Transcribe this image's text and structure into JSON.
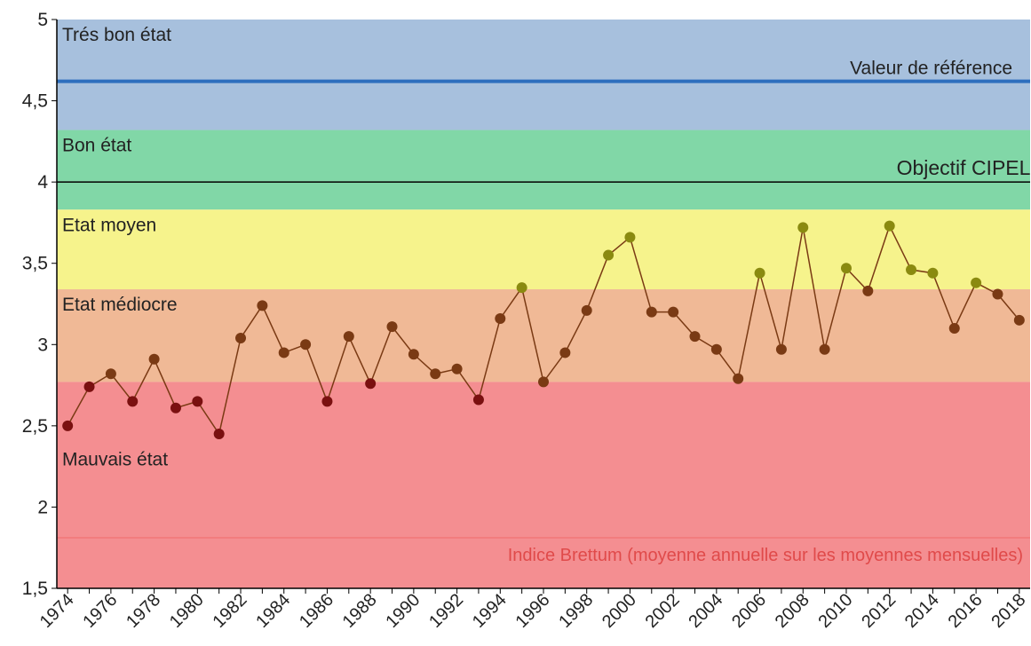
{
  "chart_data": {
    "type": "line",
    "x": [
      1974,
      1975,
      1976,
      1977,
      1978,
      1979,
      1980,
      1981,
      1982,
      1983,
      1984,
      1985,
      1986,
      1987,
      1988,
      1989,
      1990,
      1991,
      1992,
      1993,
      1994,
      1995,
      1996,
      1997,
      1998,
      1999,
      2000,
      2001,
      2002,
      2003,
      2004,
      2005,
      2006,
      2007,
      2008,
      2009,
      2010,
      2011,
      2012,
      2013,
      2014,
      2015,
      2016,
      2017,
      2018
    ],
    "series": [
      {
        "name": "Indice Brettum (moyenne annuelle sur les moyennes mensuelles)",
        "color": "#7a3a14",
        "legend_color": "#f06b6b",
        "values": [
          2.5,
          2.74,
          2.82,
          2.65,
          2.91,
          2.61,
          2.65,
          2.45,
          3.04,
          3.24,
          2.95,
          3.0,
          2.65,
          3.05,
          2.76,
          3.11,
          2.94,
          2.82,
          2.85,
          2.66,
          3.16,
          3.35,
          2.77,
          2.95,
          3.21,
          3.55,
          3.66,
          3.2,
          3.2,
          3.05,
          2.97,
          2.79,
          3.44,
          2.97,
          3.72,
          2.97,
          3.47,
          3.33,
          3.73,
          3.46,
          3.44,
          3.1,
          3.38,
          3.31,
          3.15
        ]
      }
    ],
    "bands": [
      {
        "label": "Trés bon état",
        "from": 4.32,
        "to": 5,
        "color": "#a7c0dd",
        "point_color": "#8a8a10"
      },
      {
        "label": "Bon état",
        "from": 3.83,
        "to": 4.32,
        "color": "#81d7a7",
        "point_color": "#8a8a10"
      },
      {
        "label": "Etat moyen",
        "from": 3.34,
        "to": 3.83,
        "color": "#f6f38c",
        "point_color": "#8a8a10"
      },
      {
        "label": "Etat médiocre",
        "from": 2.77,
        "to": 3.34,
        "color": "#f0b996",
        "point_color": "#7a3a14"
      },
      {
        "label": "Mauvais état",
        "from": 1.5,
        "to": 2.77,
        "color": "#f48e91",
        "point_color": "#7a1010"
      }
    ],
    "reference_lines": [
      {
        "label": "Valeur de référence",
        "value": 4.62,
        "color": "#2e6fbe",
        "width": 4
      },
      {
        "label": "Objectif CIPEL",
        "value": 4,
        "color": "#000000",
        "width": 1.5
      }
    ],
    "xlim": [
      1973.5,
      2018.5
    ],
    "xticks": [
      1974,
      1976,
      1978,
      1980,
      1982,
      1984,
      1986,
      1988,
      1990,
      1992,
      1994,
      1996,
      1998,
      2000,
      2002,
      2004,
      2006,
      2008,
      2010,
      2012,
      2014,
      2016,
      2018
    ],
    "ylim": [
      1.5,
      5
    ],
    "yticks": [
      {
        "value": 1.5,
        "label": "1,5"
      },
      2,
      {
        "value": 2.5,
        "label": "2,5"
      },
      3,
      {
        "value": 3.5,
        "label": "3,5"
      },
      4,
      {
        "value": 4.5,
        "label": "4,5"
      },
      5
    ]
  }
}
